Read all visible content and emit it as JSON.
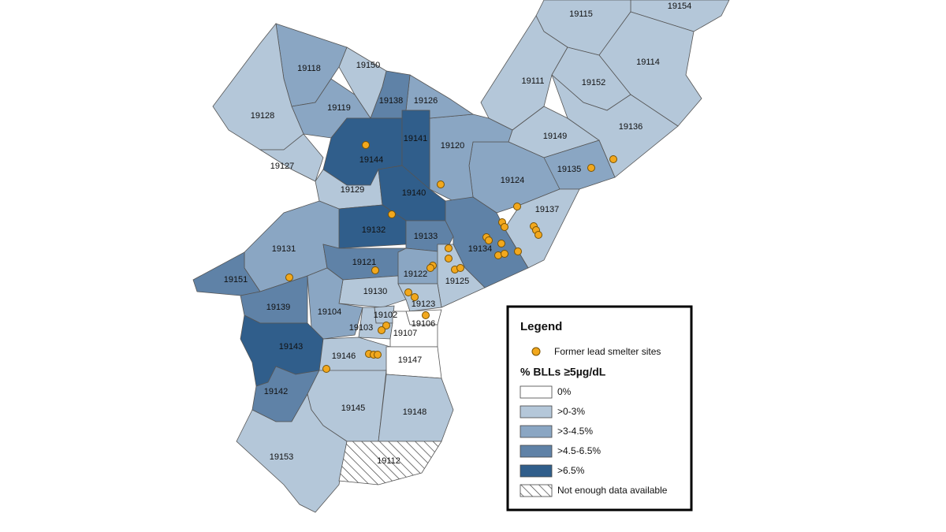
{
  "legend": {
    "title": "Legend",
    "site_label": "Former lead smelter sites",
    "scale_title": "% BLLs ≥5µg/dL",
    "classes": [
      {
        "label": "0%",
        "color": "#ffffff"
      },
      {
        "label": ">0-3%",
        "color": "#b4c7d9"
      },
      {
        "label": ">3-4.5%",
        "color": "#8aa6c3"
      },
      {
        "label": ">4.5-6.5%",
        "color": "#5f82a7"
      },
      {
        "label": ">6.5%",
        "color": "#305e8b"
      },
      {
        "label": "Not enough data available",
        "hatch": true
      }
    ]
  },
  "zones": [
    {
      "label": "19154",
      "class": ">0-3%"
    },
    {
      "label": "19115",
      "class": ">0-3%"
    },
    {
      "label": "19114",
      "class": ">0-3%"
    },
    {
      "label": "19111",
      "class": ">0-3%"
    },
    {
      "label": "19152",
      "class": ">0-3%"
    },
    {
      "label": "19149",
      "class": ">0-3%"
    },
    {
      "label": "19136",
      "class": ">0-3%"
    },
    {
      "label": "19135",
      "class": ">3-4.5%"
    },
    {
      "label": "19124",
      "class": ">3-4.5%"
    },
    {
      "label": "19137",
      "class": ">0-3%"
    },
    {
      "label": "19120",
      "class": ">3-4.5%"
    },
    {
      "label": "19126",
      "class": ">3-4.5%"
    },
    {
      "label": "19138",
      "class": ">4.5-6.5%"
    },
    {
      "label": "19150",
      "class": ">0-3%"
    },
    {
      "label": "19118",
      "class": ">3-4.5%"
    },
    {
      "label": "19119",
      "class": ">3-4.5%"
    },
    {
      "label": "19128",
      "class": ">0-3%"
    },
    {
      "label": "19127",
      "class": ">0-3%"
    },
    {
      "label": "19144",
      "class": ">6.5%"
    },
    {
      "label": "19141",
      "class": ">6.5%"
    },
    {
      "label": "19129",
      "class": ">0-3%"
    },
    {
      "label": "19140",
      "class": ">6.5%"
    },
    {
      "label": "19132",
      "class": ">6.5%"
    },
    {
      "label": "19133",
      "class": ">4.5-6.5%"
    },
    {
      "label": "19134",
      "class": ">4.5-6.5%"
    },
    {
      "label": "19131",
      "class": ">3-4.5%"
    },
    {
      "label": "19121",
      "class": ">4.5-6.5%"
    },
    {
      "label": "19122",
      "class": ">3-4.5%"
    },
    {
      "label": "19125",
      "class": ">0-3%"
    },
    {
      "label": "19151",
      "class": ">4.5-6.5%"
    },
    {
      "label": "19130",
      "class": ">0-3%"
    },
    {
      "label": "19123",
      "class": ">0-3%"
    },
    {
      "label": "19139",
      "class": ">4.5-6.5%"
    },
    {
      "label": "19104",
      "class": ">3-4.5%"
    },
    {
      "label": "19102",
      "class": ">0-3%"
    },
    {
      "label": "19103",
      "class": ">0-3%"
    },
    {
      "label": "19106",
      "class": "0%"
    },
    {
      "label": "19107",
      "class": "0%"
    },
    {
      "label": "19143",
      "class": ">6.5%"
    },
    {
      "label": "19146",
      "class": ">0-3%"
    },
    {
      "label": "19147",
      "class": "0%"
    },
    {
      "label": "19142",
      "class": ">4.5-6.5%"
    },
    {
      "label": "19145",
      "class": ">0-3%"
    },
    {
      "label": "19148",
      "class": ">0-3%"
    },
    {
      "label": "19153",
      "class": ">0-3%"
    },
    {
      "label": "19112",
      "class": "Not enough data available"
    }
  ]
}
